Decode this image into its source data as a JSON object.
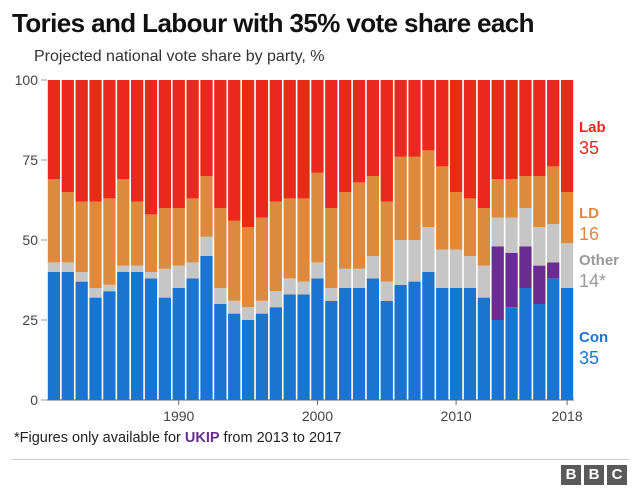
{
  "title": "Tories and Labour with 35% vote share each",
  "subtitle": "Projected national vote share by party, %",
  "footnote": {
    "prefix": "*Figures only available for ",
    "highlight": "UKIP",
    "suffix": " from 2013 to 2017"
  },
  "logo": [
    "B",
    "B",
    "C"
  ],
  "colors": {
    "Con": "#1a75d2",
    "UKIP": "#6a2c91",
    "Other": "#c6c6c6",
    "LD": "#de8a3e",
    "Lab": "#e8291c"
  },
  "legend": [
    {
      "name": "Lab",
      "value": "35",
      "color": "#e8291c"
    },
    {
      "name": "LD",
      "value": "16",
      "color": "#de8a3e"
    },
    {
      "name": "Other",
      "value": "14*",
      "color": "#999999"
    },
    {
      "name": "Con",
      "value": "35",
      "color": "#1a75d2"
    }
  ],
  "chart_data": {
    "type": "bar",
    "stacked": true,
    "ylim": [
      0,
      100
    ],
    "yticks": [
      0,
      25,
      50,
      75,
      100
    ],
    "xticks": [
      "1990",
      "2000",
      "2010",
      "2018"
    ],
    "categories": [
      "1981",
      "1982",
      "1983",
      "1984",
      "1985",
      "1986",
      "1987",
      "1988",
      "1989",
      "1990",
      "1991",
      "1992",
      "1993",
      "1994",
      "1995",
      "1996",
      "1997",
      "1998",
      "1999",
      "2000",
      "2001",
      "2002",
      "2003",
      "2004",
      "2005",
      "2006",
      "2007",
      "2008",
      "2009",
      "2010",
      "2011",
      "2012",
      "2013",
      "2014",
      "2015",
      "2016",
      "2017",
      "2018"
    ],
    "series": [
      {
        "name": "Con",
        "values": [
          40,
          40,
          37,
          32,
          34,
          40,
          40,
          38,
          32,
          35,
          38,
          45,
          30,
          27,
          25,
          27,
          29,
          33,
          33,
          38,
          31,
          35,
          35,
          38,
          31,
          36,
          37,
          40,
          35,
          35,
          35,
          32,
          25,
          29,
          35,
          30,
          38,
          35
        ]
      },
      {
        "name": "UKIP",
        "values": [
          0,
          0,
          0,
          0,
          0,
          0,
          0,
          0,
          0,
          0,
          0,
          0,
          0,
          0,
          0,
          0,
          0,
          0,
          0,
          0,
          0,
          0,
          0,
          0,
          0,
          0,
          0,
          0,
          0,
          0,
          0,
          0,
          23,
          17,
          13,
          12,
          5,
          0
        ]
      },
      {
        "name": "Other",
        "values": [
          3,
          3,
          3,
          3,
          2,
          2,
          2,
          2,
          9,
          7,
          5,
          6,
          5,
          4,
          4,
          4,
          5,
          5,
          4,
          5,
          4,
          6,
          6,
          7,
          6,
          14,
          13,
          14,
          12,
          12,
          10,
          10,
          9,
          11,
          12,
          12,
          12,
          14
        ]
      },
      {
        "name": "LD",
        "values": [
          26,
          22,
          22,
          27,
          27,
          27,
          20,
          18,
          19,
          18,
          20,
          19,
          25,
          25,
          25,
          26,
          28,
          25,
          26,
          28,
          25,
          24,
          27,
          25,
          25,
          26,
          26,
          24,
          26,
          18,
          18,
          18,
          12,
          12,
          10,
          16,
          18,
          16
        ]
      },
      {
        "name": "Lab",
        "values": [
          31,
          35,
          38,
          38,
          37,
          31,
          38,
          42,
          40,
          40,
          37,
          30,
          40,
          44,
          46,
          43,
          38,
          37,
          37,
          29,
          40,
          35,
          32,
          30,
          38,
          24,
          24,
          22,
          27,
          35,
          37,
          40,
          31,
          31,
          30,
          30,
          27,
          35
        ]
      }
    ]
  }
}
